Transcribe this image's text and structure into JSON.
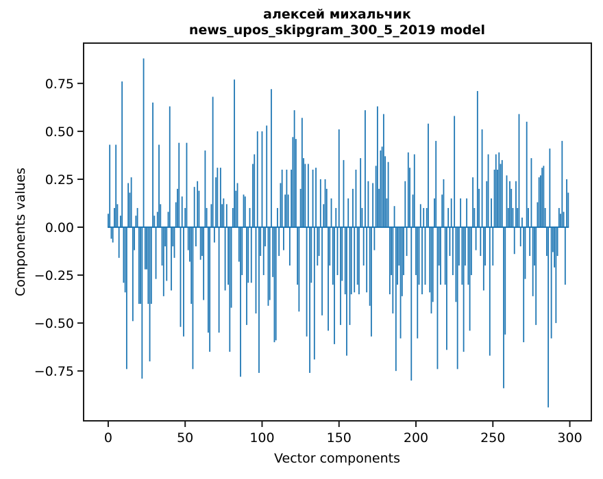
{
  "colors": {
    "background": "#ffffff",
    "spine": "#1a1a1a",
    "text": "#000000",
    "bar": "#1f77b4"
  },
  "chart_data": {
    "type": "bar",
    "title_lines": [
      "алексей михальчик",
      "news_upos_skipgram_300_5_2019 model"
    ],
    "xlabel": "Vector components",
    "ylabel": "Components values",
    "legend": "none",
    "grid": false,
    "n_bars": 300,
    "bar_color": "#1f77b4",
    "bar_width": 0.8,
    "xlim": [
      -16,
      314
    ],
    "ylim": [
      -1.01,
      0.96
    ],
    "x_tick_values": [
      0,
      50,
      100,
      150,
      200,
      250,
      300
    ],
    "x_tick_labels": [
      "0",
      "50",
      "100",
      "150",
      "200",
      "250",
      "300"
    ],
    "y_tick_values": [
      0.75,
      0.5,
      0.25,
      0.0,
      -0.25,
      -0.5,
      -0.75
    ],
    "y_tick_labels": [
      "0.75",
      "0.50",
      "0.25",
      "0.00",
      "−0.25",
      "−0.50",
      "−0.75"
    ],
    "values": [
      0.07,
      0.43,
      -0.06,
      -0.08,
      0.1,
      0.43,
      0.12,
      -0.16,
      0.06,
      0.76,
      -0.29,
      -0.34,
      -0.74,
      0.23,
      0.18,
      0.26,
      -0.49,
      -0.12,
      0.06,
      0.1,
      -0.4,
      -0.4,
      -0.79,
      0.88,
      -0.22,
      -0.22,
      -0.4,
      -0.7,
      -0.4,
      0.65,
      0.06,
      -0.27,
      0.08,
      0.43,
      0.12,
      -0.2,
      -0.36,
      -0.1,
      -0.28,
      0.08,
      0.63,
      -0.33,
      -0.1,
      -0.16,
      0.13,
      0.2,
      0.44,
      -0.52,
      0.16,
      -0.57,
      0.1,
      0.44,
      -0.12,
      -0.18,
      -0.4,
      -0.74,
      0.21,
      -0.1,
      0.24,
      0.19,
      -0.17,
      -0.15,
      -0.38,
      0.4,
      0.1,
      -0.55,
      -0.65,
      0.12,
      0.68,
      -0.08,
      0.26,
      0.31,
      -0.55,
      0.31,
      0.12,
      0.15,
      -0.33,
      0.12,
      -0.3,
      -0.65,
      -0.42,
      0.1,
      0.77,
      0.19,
      0.23,
      -0.18,
      -0.78,
      -0.25,
      0.17,
      0.16,
      -0.51,
      -0.29,
      0.1,
      -0.29,
      0.33,
      0.38,
      -0.45,
      0.5,
      -0.76,
      -0.15,
      0.5,
      -0.25,
      -0.1,
      0.53,
      -0.41,
      -0.38,
      0.72,
      -0.26,
      -0.6,
      -0.59,
      0.1,
      -0.15,
      0.23,
      0.3,
      -0.12,
      0.17,
      0.3,
      0.17,
      -0.2,
      0.3,
      0.47,
      0.61,
      0.46,
      -0.3,
      -0.44,
      0.2,
      0.57,
      0.36,
      0.33,
      -0.57,
      0.33,
      -0.76,
      -0.29,
      0.3,
      -0.69,
      0.31,
      -0.2,
      -0.15,
      0.25,
      -0.46,
      0.12,
      0.25,
      0.2,
      -0.54,
      -0.2,
      0.15,
      -0.3,
      -0.61,
      0.1,
      -0.25,
      0.51,
      -0.51,
      -0.28,
      0.35,
      -0.35,
      -0.67,
      0.15,
      -0.51,
      -0.35,
      0.2,
      -0.34,
      0.3,
      -0.3,
      -0.35,
      0.36,
      0.1,
      -0.2,
      0.61,
      -0.34,
      0.24,
      -0.41,
      -0.57,
      0.23,
      -0.12,
      0.32,
      0.63,
      0.2,
      0.4,
      0.42,
      0.59,
      0.37,
      0.15,
      0.34,
      -0.35,
      -0.25,
      -0.45,
      0.11,
      -0.75,
      -0.3,
      -0.2,
      -0.58,
      -0.36,
      -0.25,
      0.24,
      -0.15,
      0.39,
      0.31,
      -0.8,
      0.17,
      0.38,
      -0.25,
      -0.58,
      -0.3,
      0.12,
      -0.35,
      0.1,
      -0.3,
      0.1,
      0.54,
      -0.34,
      -0.45,
      -0.39,
      0.15,
      0.45,
      -0.74,
      -0.2,
      -0.3,
      0.17,
      0.25,
      -0.3,
      -0.64,
      0.1,
      -0.15,
      0.15,
      -0.25,
      0.58,
      -0.39,
      -0.74,
      -0.2,
      0.15,
      -0.3,
      -0.65,
      -0.2,
      0.15,
      -0.3,
      -0.54,
      -0.25,
      0.26,
      0.1,
      -0.12,
      0.71,
      0.2,
      -0.15,
      0.51,
      -0.33,
      -0.2,
      0.24,
      0.38,
      -0.67,
      0.15,
      -0.2,
      0.3,
      0.38,
      0.3,
      0.39,
      0.33,
      0.35,
      -0.84,
      -0.56,
      0.27,
      0.1,
      0.24,
      0.2,
      0.1,
      -0.14,
      0.24,
      0.1,
      0.59,
      -0.1,
      0.05,
      -0.6,
      -0.27,
      0.55,
      0.1,
      -0.15,
      0.36,
      -0.36,
      -0.2,
      -0.51,
      0.13,
      0.26,
      0.27,
      0.31,
      0.32,
      0.1,
      -0.15,
      -0.94,
      0.41,
      -0.58,
      -0.13,
      -0.21,
      -0.5,
      -0.15,
      0.1,
      0.07,
      0.45,
      0.08,
      -0.3,
      0.25,
      0.18
    ]
  }
}
